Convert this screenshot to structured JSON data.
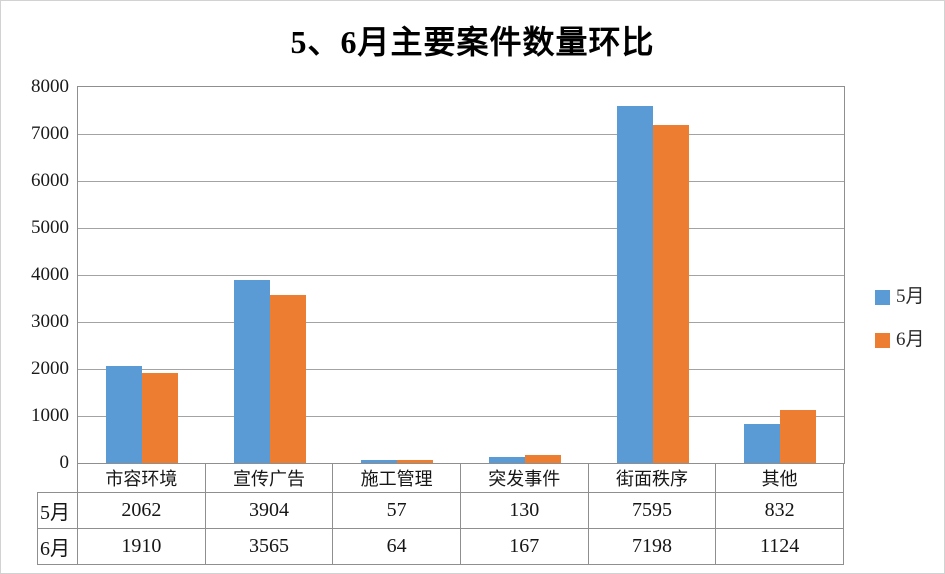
{
  "chart_data": {
    "type": "bar",
    "title": "5、6月主要案件数量环比",
    "categories": [
      "市容环境",
      "宣传广告",
      "施工管理",
      "突发事件",
      "街面秩序",
      "其他"
    ],
    "series": [
      {
        "name": "5月",
        "color": "#5B9BD5",
        "values": [
          2062,
          3904,
          57,
          130,
          7595,
          832
        ]
      },
      {
        "name": "6月",
        "color": "#ED7D31",
        "values": [
          1910,
          3565,
          64,
          167,
          7198,
          1124
        ]
      }
    ],
    "xlabel": "",
    "ylabel": "",
    "ylim": [
      0,
      8000
    ],
    "y_ticks": [
      0,
      1000,
      2000,
      3000,
      4000,
      5000,
      6000,
      7000,
      8000
    ],
    "grid": true,
    "gridline_color": "#a3a3a3",
    "legend_position": "right",
    "data_table_shown": true,
    "background": "#ffffff"
  }
}
